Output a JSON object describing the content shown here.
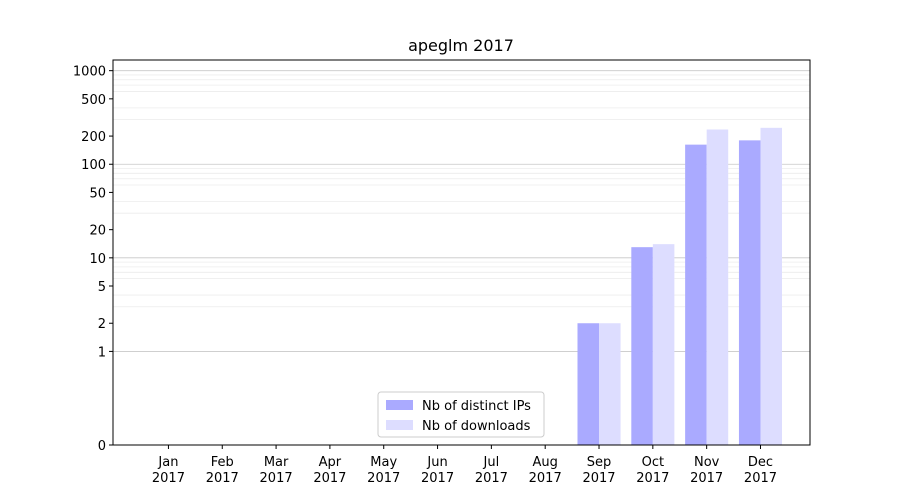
{
  "chart_data": {
    "type": "bar",
    "title": "apeglm 2017",
    "categories": [
      [
        "Jan",
        "2017"
      ],
      [
        "Feb",
        "2017"
      ],
      [
        "Mar",
        "2017"
      ],
      [
        "Apr",
        "2017"
      ],
      [
        "May",
        "2017"
      ],
      [
        "Jun",
        "2017"
      ],
      [
        "Jul",
        "2017"
      ],
      [
        "Aug",
        "2017"
      ],
      [
        "Sep",
        "2017"
      ],
      [
        "Oct",
        "2017"
      ],
      [
        "Nov",
        "2017"
      ],
      [
        "Dec",
        "2017"
      ]
    ],
    "series": [
      {
        "name": "Nb of distinct IPs",
        "color": "#aaaaff",
        "values": [
          0,
          0,
          0,
          0,
          0,
          0,
          0,
          0,
          2,
          13,
          162,
          180
        ]
      },
      {
        "name": "Nb of downloads",
        "color": "#ddddff",
        "values": [
          0,
          0,
          0,
          0,
          0,
          0,
          0,
          0,
          2,
          14,
          235,
          245
        ]
      }
    ],
    "yscale": "symlog",
    "ylim": [
      0,
      1300
    ],
    "yticks": [
      0,
      1,
      2,
      5,
      10,
      20,
      50,
      100,
      200,
      500,
      1000
    ],
    "xlabel": "",
    "ylabel": "",
    "grid": true,
    "legend_position": "lower-center"
  }
}
